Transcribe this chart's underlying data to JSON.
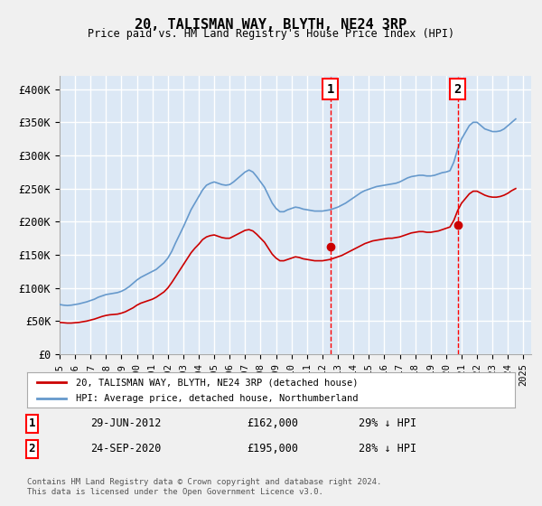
{
  "title": "20, TALISMAN WAY, BLYTH, NE24 3RP",
  "subtitle": "Price paid vs. HM Land Registry's House Price Index (HPI)",
  "ylabel": "",
  "ylim": [
    0,
    420000
  ],
  "yticks": [
    0,
    50000,
    100000,
    150000,
    200000,
    250000,
    300000,
    350000,
    400000
  ],
  "ytick_labels": [
    "£0",
    "£50K",
    "£100K",
    "£150K",
    "£200K",
    "£250K",
    "£300K",
    "£350K",
    "£400K"
  ],
  "background_color": "#e8f0f8",
  "plot_bg_color": "#dce8f5",
  "grid_color": "#ffffff",
  "red_line_color": "#cc0000",
  "blue_line_color": "#6699cc",
  "marker1_date_x": 2012.5,
  "marker1_price": 162000,
  "marker1_label": "1",
  "marker2_date_x": 2020.75,
  "marker2_price": 195000,
  "marker2_label": "2",
  "legend_label_red": "20, TALISMAN WAY, BLYTH, NE24 3RP (detached house)",
  "legend_label_blue": "HPI: Average price, detached house, Northumberland",
  "annotation1_num": "1",
  "annotation1_date": "29-JUN-2012",
  "annotation1_price": "£162,000",
  "annotation1_hpi": "29% ↓ HPI",
  "annotation2_num": "2",
  "annotation2_date": "24-SEP-2020",
  "annotation2_price": "£195,000",
  "annotation2_hpi": "28% ↓ HPI",
  "footer": "Contains HM Land Registry data © Crown copyright and database right 2024.\nThis data is licensed under the Open Government Licence v3.0.",
  "hpi_years": [
    1995.0,
    1995.25,
    1995.5,
    1995.75,
    1996.0,
    1996.25,
    1996.5,
    1996.75,
    1997.0,
    1997.25,
    1997.5,
    1997.75,
    1998.0,
    1998.25,
    1998.5,
    1998.75,
    1999.0,
    1999.25,
    1999.5,
    1999.75,
    2000.0,
    2000.25,
    2000.5,
    2000.75,
    2001.0,
    2001.25,
    2001.5,
    2001.75,
    2002.0,
    2002.25,
    2002.5,
    2002.75,
    2003.0,
    2003.25,
    2003.5,
    2003.75,
    2004.0,
    2004.25,
    2004.5,
    2004.75,
    2005.0,
    2005.25,
    2005.5,
    2005.75,
    2006.0,
    2006.25,
    2006.5,
    2006.75,
    2007.0,
    2007.25,
    2007.5,
    2007.75,
    2008.0,
    2008.25,
    2008.5,
    2008.75,
    2009.0,
    2009.25,
    2009.5,
    2009.75,
    2010.0,
    2010.25,
    2010.5,
    2010.75,
    2011.0,
    2011.25,
    2011.5,
    2011.75,
    2012.0,
    2012.25,
    2012.5,
    2012.75,
    2013.0,
    2013.25,
    2013.5,
    2013.75,
    2014.0,
    2014.25,
    2014.5,
    2014.75,
    2015.0,
    2015.25,
    2015.5,
    2015.75,
    2016.0,
    2016.25,
    2016.5,
    2016.75,
    2017.0,
    2017.25,
    2017.5,
    2017.75,
    2018.0,
    2018.25,
    2018.5,
    2018.75,
    2019.0,
    2019.25,
    2019.5,
    2019.75,
    2020.0,
    2020.25,
    2020.5,
    2020.75,
    2021.0,
    2021.25,
    2021.5,
    2021.75,
    2022.0,
    2022.25,
    2022.5,
    2022.75,
    2023.0,
    2023.25,
    2023.5,
    2023.75,
    2024.0,
    2024.25,
    2024.5
  ],
  "hpi_values": [
    75000,
    74000,
    73500,
    74000,
    75000,
    76000,
    77500,
    79000,
    81000,
    83000,
    86000,
    88000,
    90000,
    91000,
    92000,
    93000,
    95000,
    98000,
    102000,
    107000,
    112000,
    116000,
    119000,
    122000,
    125000,
    128000,
    133000,
    138000,
    145000,
    155000,
    168000,
    180000,
    192000,
    205000,
    218000,
    228000,
    238000,
    248000,
    255000,
    258000,
    260000,
    258000,
    256000,
    255000,
    256000,
    260000,
    265000,
    270000,
    275000,
    278000,
    275000,
    268000,
    260000,
    252000,
    240000,
    228000,
    220000,
    215000,
    215000,
    218000,
    220000,
    222000,
    221000,
    219000,
    218000,
    217000,
    216000,
    216000,
    216000,
    217000,
    218000,
    220000,
    222000,
    225000,
    228000,
    232000,
    236000,
    240000,
    244000,
    247000,
    249000,
    251000,
    253000,
    254000,
    255000,
    256000,
    257000,
    258000,
    260000,
    263000,
    266000,
    268000,
    269000,
    270000,
    270000,
    269000,
    269000,
    270000,
    272000,
    274000,
    275000,
    277000,
    290000,
    310000,
    325000,
    335000,
    345000,
    350000,
    350000,
    345000,
    340000,
    338000,
    336000,
    336000,
    337000,
    340000,
    345000,
    350000,
    355000
  ],
  "red_years": [
    1995.0,
    1995.25,
    1995.5,
    1995.75,
    1996.0,
    1996.25,
    1996.5,
    1996.75,
    1997.0,
    1997.25,
    1997.5,
    1997.75,
    1998.0,
    1998.25,
    1998.5,
    1998.75,
    1999.0,
    1999.25,
    1999.5,
    1999.75,
    2000.0,
    2000.25,
    2000.5,
    2000.75,
    2001.0,
    2001.25,
    2001.5,
    2001.75,
    2002.0,
    2002.25,
    2002.5,
    2002.75,
    2003.0,
    2003.25,
    2003.5,
    2003.75,
    2004.0,
    2004.25,
    2004.5,
    2004.75,
    2005.0,
    2005.25,
    2005.5,
    2005.75,
    2006.0,
    2006.25,
    2006.5,
    2006.75,
    2007.0,
    2007.25,
    2007.5,
    2007.75,
    2008.0,
    2008.25,
    2008.5,
    2008.75,
    2009.0,
    2009.25,
    2009.5,
    2009.75,
    2010.0,
    2010.25,
    2010.5,
    2010.75,
    2011.0,
    2011.25,
    2011.5,
    2011.75,
    2012.0,
    2012.25,
    2012.5,
    2012.75,
    2013.0,
    2013.25,
    2013.5,
    2013.75,
    2014.0,
    2014.25,
    2014.5,
    2014.75,
    2015.0,
    2015.25,
    2015.5,
    2015.75,
    2016.0,
    2016.25,
    2016.5,
    2016.75,
    2017.0,
    2017.25,
    2017.5,
    2017.75,
    2018.0,
    2018.25,
    2018.5,
    2018.75,
    2019.0,
    2019.25,
    2019.5,
    2019.75,
    2020.0,
    2020.25,
    2020.5,
    2020.75,
    2021.0,
    2021.25,
    2021.5,
    2021.75,
    2022.0,
    2022.25,
    2022.5,
    2022.75,
    2023.0,
    2023.25,
    2023.5,
    2023.75,
    2024.0,
    2024.25,
    2024.5
  ],
  "red_values": [
    48000,
    47500,
    47000,
    47000,
    47500,
    48000,
    49000,
    50000,
    51500,
    53000,
    55000,
    57000,
    58500,
    59500,
    60000,
    60500,
    62000,
    64000,
    67000,
    70000,
    74000,
    77000,
    79000,
    81000,
    83000,
    86000,
    90000,
    94000,
    100000,
    108000,
    117000,
    126000,
    135000,
    144000,
    153000,
    160000,
    166000,
    173000,
    177000,
    179000,
    180000,
    178000,
    176000,
    175000,
    175000,
    178000,
    181000,
    184000,
    187000,
    188000,
    186000,
    181000,
    175000,
    169000,
    160000,
    151000,
    145000,
    141000,
    141000,
    143000,
    145000,
    147000,
    146000,
    144000,
    143000,
    142000,
    141000,
    141000,
    141000,
    142000,
    143000,
    145000,
    147000,
    149000,
    152000,
    155000,
    158000,
    161000,
    164000,
    167000,
    169000,
    171000,
    172000,
    173000,
    174000,
    175000,
    175000,
    176000,
    177000,
    179000,
    181000,
    183000,
    184000,
    185000,
    185000,
    184000,
    184000,
    185000,
    186000,
    188000,
    190000,
    192000,
    202000,
    217000,
    228000,
    235000,
    242000,
    246000,
    246000,
    243000,
    240000,
    238000,
    237000,
    237000,
    238000,
    240000,
    243000,
    247000,
    250000
  ],
  "xtick_years": [
    1995,
    1996,
    1997,
    1998,
    1999,
    2000,
    2001,
    2002,
    2003,
    2004,
    2005,
    2006,
    2007,
    2008,
    2009,
    2010,
    2011,
    2012,
    2013,
    2014,
    2015,
    2016,
    2017,
    2018,
    2019,
    2020,
    2021,
    2022,
    2023,
    2024,
    2025
  ]
}
